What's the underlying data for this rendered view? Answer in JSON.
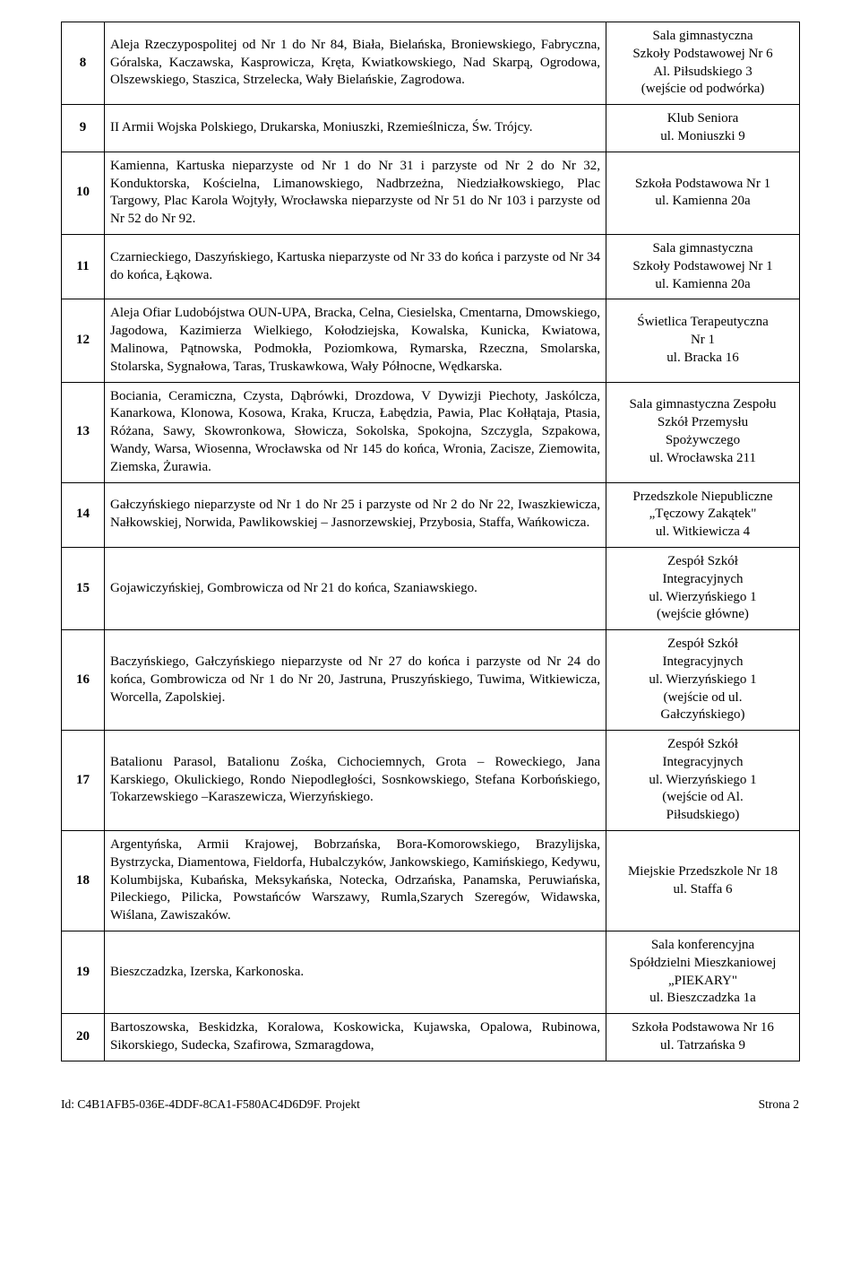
{
  "rows": [
    {
      "num": "8",
      "desc": "Aleja Rzeczypospolitej od Nr 1 do Nr 84, Biała, Bielańska, Broniewskiego, Fabryczna, Góralska, Kaczawska, Kasprowicza, Kręta, Kwiatkowskiego, Nad Skarpą, Ogrodowa, Olszewskiego, Staszica, Strzelecka, Wały Bielańskie, Zagrodowa.",
      "loc": "Sala gimnastyczna\nSzkoły Podstawowej Nr 6\nAl. Piłsudskiego 3\n(wejście od podwórka)"
    },
    {
      "num": "9",
      "desc": "II Armii Wojska Polskiego, Drukarska, Moniuszki, Rzemieślnicza, Św. Trójcy.",
      "loc": "Klub Seniora\nul. Moniuszki 9"
    },
    {
      "num": "10",
      "desc": "Kamienna, Kartuska nieparzyste od Nr 1 do Nr 31 i parzyste od Nr 2 do Nr 32, Konduktorska, Kościelna, Limanowskiego, Nadbrzeżna, Niedziałkowskiego, Plac Targowy, Plac Karola Wojtyły, Wrocławska nieparzyste od Nr 51 do Nr 103 i parzyste od Nr 52 do Nr 92.",
      "loc": "Szkoła Podstawowa Nr 1\nul. Kamienna 20a"
    },
    {
      "num": "11",
      "desc": "Czarnieckiego, Daszyńskiego, Kartuska nieparzyste od Nr 33 do końca i parzyste od Nr 34 do końca, Łąkowa.",
      "loc": "Sala gimnastyczna\nSzkoły Podstawowej Nr 1\nul. Kamienna 20a"
    },
    {
      "num": "12",
      "desc": "Aleja Ofiar Ludobójstwa OUN-UPA, Bracka, Celna, Ciesielska, Cmentarna, Dmowskiego, Jagodowa, Kazimierza Wielkiego, Kołodziejska, Kowalska, Kunicka, Kwiatowa, Malinowa, Pątnowska, Podmokła, Poziomkowa, Rymarska, Rzeczna, Smolarska, Stolarska, Sygnałowa, Taras, Truskawkowa, Wały Północne, Wędkarska.",
      "loc": "Świetlica Terapeutyczna\nNr 1\nul. Bracka 16"
    },
    {
      "num": "13",
      "desc": "Bociania, Ceramiczna, Czysta, Dąbrówki, Drozdowa, V Dywizji Piechoty, Jaskólcza, Kanarkowa, Klonowa, Kosowa, Kraka, Krucza, Łabędzia, Pawia, Plac Kołłątaja, Ptasia, Różana, Sawy, Skowronkowa, Słowicza, Sokolska, Spokojna, Szczygla, Szpakowa, Wandy, Warsa, Wiosenna, Wrocławska od Nr 145 do końca, Wronia, Zacisze, Ziemowita, Ziemska, Żurawia.",
      "loc": "Sala gimnastyczna Zespołu\nSzkół Przemysłu\nSpożywczego\nul. Wrocławska 211"
    },
    {
      "num": "14",
      "desc": "Gałczyńskiego nieparzyste od Nr 1 do Nr 25 i parzyste od Nr 2 do Nr 22, Iwaszkiewicza, Nałkowskiej, Norwida, Pawlikowskiej – Jasnorzewskiej, Przybosia, Staffa, Wańkowicza.",
      "loc": "Przedszkole Niepubliczne\n„Tęczowy Zakątek\"\nul. Witkiewicza 4"
    },
    {
      "num": "15",
      "desc": "Gojawiczyńskiej, Gombrowicza od Nr 21 do końca, Szaniawskiego.",
      "loc": "Zespół Szkół\nIntegracyjnych\nul. Wierzyńskiego 1\n(wejście główne)"
    },
    {
      "num": "16",
      "desc": "Baczyńskiego, Gałczyńskiego nieparzyste od Nr 27 do końca i parzyste od Nr 24 do końca, Gombrowicza od Nr 1 do Nr 20, Jastruna, Pruszyńskiego, Tuwima, Witkiewicza, Worcella, Zapolskiej.",
      "loc": "Zespół Szkół\nIntegracyjnych\nul. Wierzyńskiego 1\n(wejście od ul.\nGałczyńskiego)"
    },
    {
      "num": "17",
      "desc": "Batalionu Parasol, Batalionu Zośka, Cichociemnych, Grota – Roweckiego, Jana Karskiego, Okulickiego, Rondo Niepodległości, Sosnkowskiego, Stefana Korbońskiego, Tokarzewskiego –Karaszewicza, Wierzyńskiego.",
      "loc": "Zespół Szkół\nIntegracyjnych\nul. Wierzyńskiego 1\n(wejście od Al.\nPiłsudskiego)"
    },
    {
      "num": "18",
      "desc": "Argentyńska, Armii Krajowej, Bobrzańska, Bora-Komorowskiego, Brazylijska, Bystrzycka, Diamentowa, Fieldorfa, Hubalczyków, Jankowskiego, Kamińskiego, Kedywu, Kolumbijska, Kubańska, Meksykańska, Notecka, Odrzańska, Panamska, Peruwiańska, Pileckiego, Pilicka, Powstańców Warszawy, Rumla,Szarych Szeregów, Widawska, Wiślana, Zawiszaków.",
      "loc": "Miejskie Przedszkole Nr 18\nul. Staffa 6"
    },
    {
      "num": "19",
      "desc": "Bieszczadzka, Izerska, Karkonoska.",
      "loc": "Sala konferencyjna\nSpółdzielni Mieszkaniowej\n„PIEKARY\"\nul. Bieszczadzka 1a"
    },
    {
      "num": "20",
      "desc": "Bartoszowska, Beskidzka, Koralowa, Koskowicka, Kujawska, Opalowa, Rubinowa, Sikorskiego, Sudecka, Szafirowa, Szmaragdowa,",
      "loc": "Szkoła Podstawowa Nr 16\nul. Tatrzańska 9"
    }
  ],
  "footer_left": "Id: C4B1AFB5-036E-4DDF-8CA1-F580AC4D6D9F. Projekt",
  "footer_right": "Strona 2"
}
